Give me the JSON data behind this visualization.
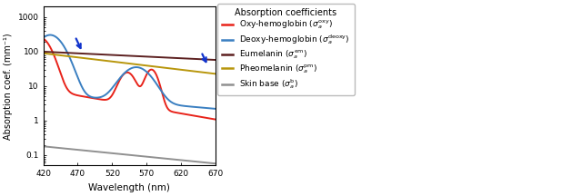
{
  "wavelength_range": [
    420,
    670
  ],
  "ylim": [
    0.05,
    2000
  ],
  "yticks": [
    0.1,
    1,
    10,
    100,
    1000
  ],
  "ytick_labels": [
    "0.1",
    "1",
    "10",
    "100",
    "1000"
  ],
  "xticks": [
    420,
    470,
    520,
    570,
    620,
    670
  ],
  "xlabel": "Wavelength (nm)",
  "ylabel": "Absorption coef. (mm⁻¹)",
  "legend_title": "Absorption coefficients",
  "colors": {
    "oxy": "#e8231a",
    "deoxy": "#3a7fc1",
    "eumelanin": "#5c2020",
    "pheomelanin": "#b8960c",
    "skin_base": "#909090"
  },
  "background": "#ffffff",
  "figsize": [
    6.4,
    2.16
  ],
  "dpi": 100
}
